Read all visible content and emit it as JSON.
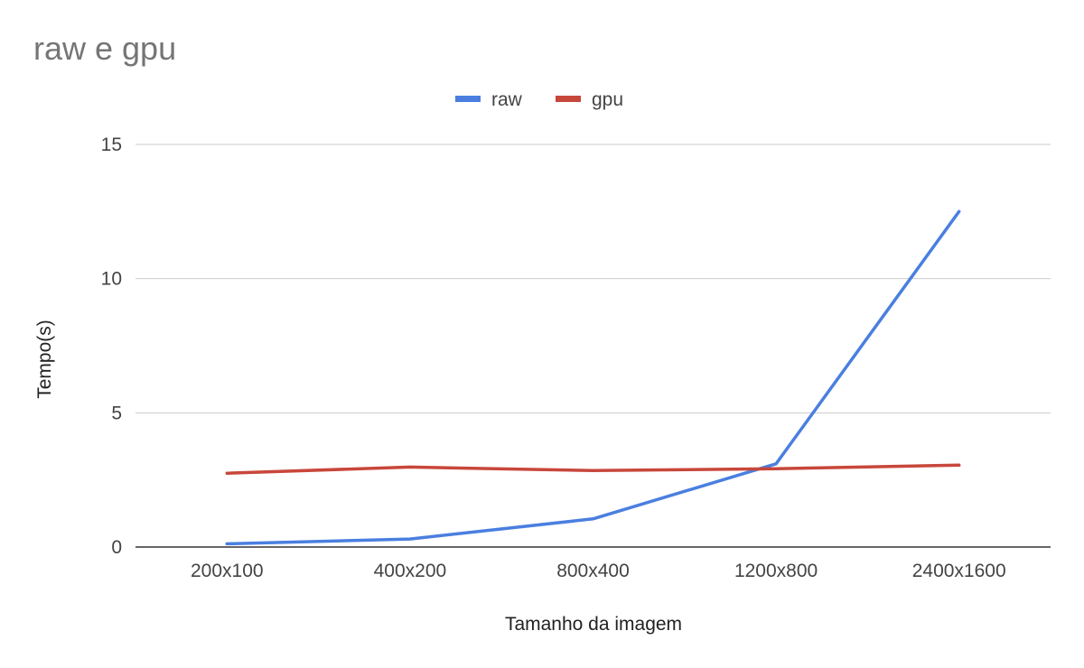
{
  "chart_data": {
    "type": "line",
    "title": "raw e gpu",
    "xlabel": "Tamanho da imagem",
    "ylabel": "Tempo(s)",
    "categories": [
      "200x100",
      "400x200",
      "800x400",
      "1200x800",
      "2400x1600"
    ],
    "ylim": [
      0,
      15
    ],
    "yticks": [
      0,
      5,
      10,
      15
    ],
    "grid": true,
    "legend": "top-center",
    "series": [
      {
        "name": "raw",
        "color": "#4a7fe0",
        "values": [
          0.12,
          0.3,
          1.05,
          3.1,
          12.5
        ]
      },
      {
        "name": "gpu",
        "color": "#c8473b",
        "values": [
          2.75,
          2.98,
          2.85,
          2.92,
          3.05
        ]
      }
    ]
  }
}
